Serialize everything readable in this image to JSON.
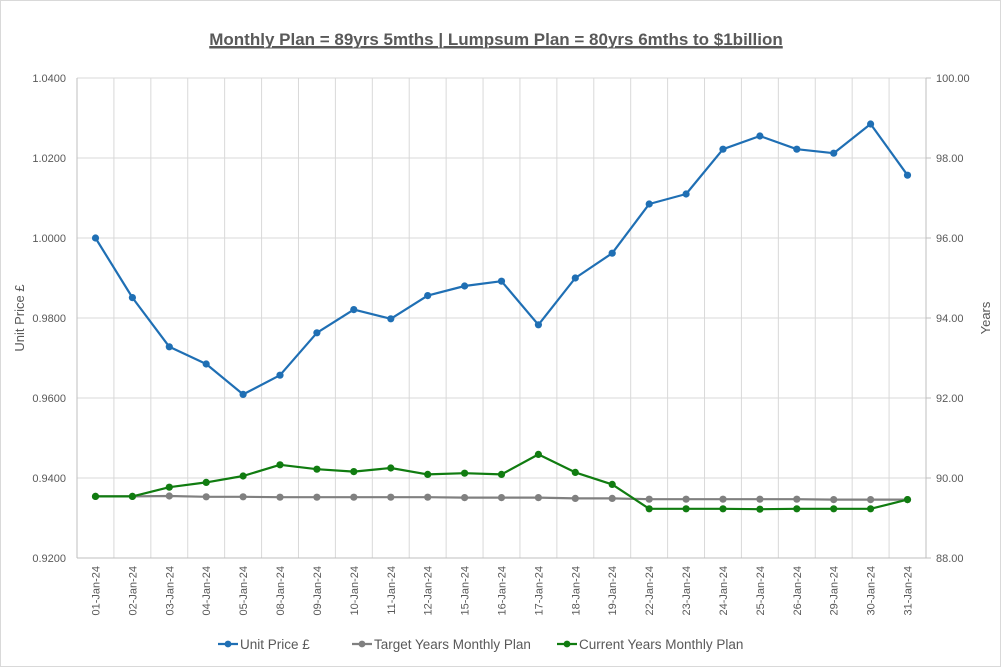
{
  "chart_data": {
    "type": "line",
    "title": "Monthly Plan = 89yrs 5mths | Lumpsum Plan = 80yrs 6mths to $1billion",
    "xlabel": "",
    "ylabel": "Unit Price £",
    "y2label": "Years",
    "ylim": [
      0.92,
      1.04
    ],
    "y2lim": [
      88,
      100
    ],
    "yticks": [
      "0.9200",
      "0.9400",
      "0.9600",
      "0.9800",
      "1.0000",
      "1.0200",
      "1.0400"
    ],
    "y2ticks": [
      "88.00",
      "90.00",
      "92.00",
      "94.00",
      "96.00",
      "98.00",
      "100.00"
    ],
    "grid": true,
    "legend_position": "bottom",
    "categories": [
      "01-Jan-24",
      "02-Jan-24",
      "03-Jan-24",
      "04-Jan-24",
      "05-Jan-24",
      "08-Jan-24",
      "09-Jan-24",
      "10-Jan-24",
      "11-Jan-24",
      "12-Jan-24",
      "15-Jan-24",
      "16-Jan-24",
      "17-Jan-24",
      "18-Jan-24",
      "19-Jan-24",
      "22-Jan-24",
      "23-Jan-24",
      "24-Jan-24",
      "25-Jan-24",
      "26-Jan-24",
      "29-Jan-24",
      "30-Jan-24",
      "31-Jan-24"
    ],
    "series": [
      {
        "name": "Unit Price £",
        "axis": "left",
        "color": "#1f6fb4",
        "values": [
          1.0,
          0.9851,
          0.9728,
          0.9685,
          0.9609,
          0.9657,
          0.9763,
          0.9821,
          0.9798,
          0.9856,
          0.988,
          0.9892,
          0.9783,
          0.99,
          0.9962,
          1.0085,
          1.011,
          1.0222,
          1.0255,
          1.0222,
          1.0212,
          1.0285,
          1.0157
        ]
      },
      {
        "name": "Target Years Monthly Plan",
        "axis": "right",
        "color": "#808080",
        "values": [
          89.54,
          89.54,
          89.55,
          89.53,
          89.53,
          89.52,
          89.52,
          89.52,
          89.52,
          89.52,
          89.51,
          89.51,
          89.51,
          89.49,
          89.49,
          89.47,
          89.47,
          89.47,
          89.47,
          89.47,
          89.46,
          89.46,
          89.46
        ]
      },
      {
        "name": "Current Years Monthly Plan",
        "axis": "right",
        "color": "#107c10",
        "values": [
          89.54,
          89.54,
          89.77,
          89.89,
          90.05,
          90.33,
          90.22,
          90.16,
          90.25,
          90.09,
          90.12,
          90.09,
          90.59,
          90.14,
          89.84,
          89.23,
          89.23,
          89.23,
          89.22,
          89.23,
          89.23,
          89.23,
          89.46
        ]
      }
    ]
  }
}
